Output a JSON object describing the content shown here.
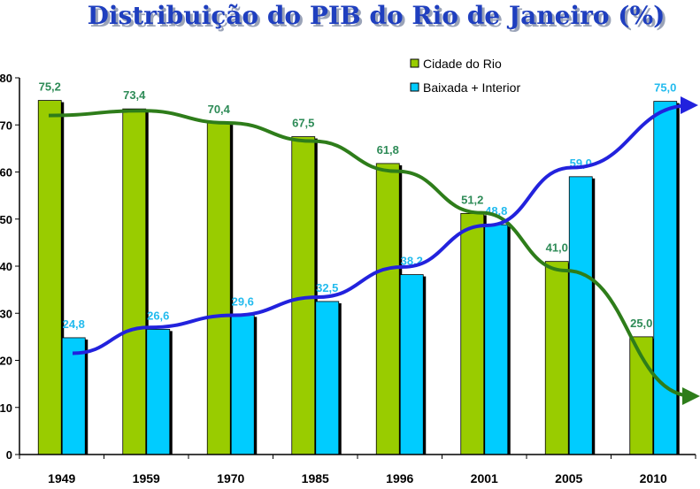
{
  "chart_data": {
    "type": "bar",
    "title": "Distribuição do PIB do Rio de Janeiro (%)",
    "categories": [
      "1949",
      "1959",
      "1970",
      "1985",
      "1996",
      "2001",
      "2005",
      "2010"
    ],
    "series": [
      {
        "name": "Cidade do Rio",
        "color": "#99cc00",
        "label_color": "#2e8b57",
        "values": [
          75.2,
          73.4,
          70.4,
          67.5,
          61.8,
          51.2,
          41.0,
          25.0
        ],
        "labels": [
          "75,2",
          "73,4",
          "70,4",
          "67,5",
          "61,8",
          "51,2",
          "41,0",
          "25,0"
        ]
      },
      {
        "name": "Baixada + Interior",
        "color": "#00ccff",
        "label_color": "#22bbee",
        "values": [
          24.8,
          26.6,
          29.6,
          32.5,
          38.2,
          48.8,
          59.0,
          75.0
        ],
        "labels": [
          "24,8",
          "26,6",
          "29,6",
          "32,5",
          "38,2",
          "48,8",
          "59,0",
          "75,0"
        ]
      }
    ],
    "ylim": [
      0,
      80
    ],
    "yticks": [
      "0",
      "10",
      "20",
      "30",
      "40",
      "50",
      "60",
      "70",
      "80"
    ],
    "ytick_values": [
      0,
      10,
      20,
      30,
      40,
      50,
      60,
      70,
      80
    ],
    "legend_position": "top-right",
    "trend_arrows": [
      {
        "series": "Cidade do Rio",
        "color": "#2e7d1a",
        "direction": "down"
      },
      {
        "series": "Baixada + Interior",
        "color": "#2222dd",
        "direction": "up"
      }
    ],
    "grid": false
  }
}
